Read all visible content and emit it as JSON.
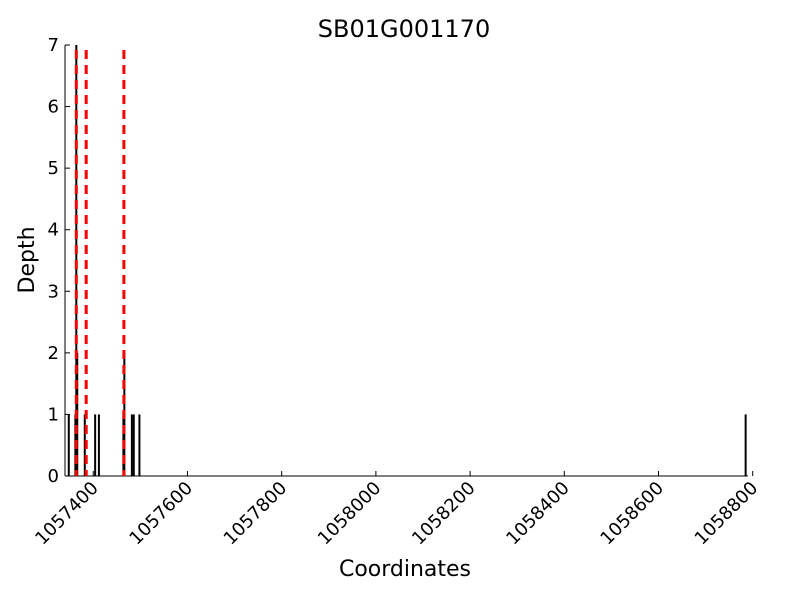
{
  "chart_data": {
    "type": "bar",
    "title": "SB01G001170",
    "xlabel": "Coordinates",
    "ylabel": "Depth",
    "xlim": [
      1057340,
      1058790
    ],
    "ylim": [
      0,
      7
    ],
    "grid": false,
    "legend": "none",
    "xticks": [
      1057400,
      1057600,
      1057800,
      1058000,
      1058200,
      1058400,
      1058600,
      1058800
    ],
    "xtick_labels": [
      "1057400",
      "1057600",
      "1057800",
      "1058000",
      "1058200",
      "1058400",
      "1058600",
      "1058800"
    ],
    "yticks": [
      0,
      1,
      2,
      3,
      4,
      5,
      6,
      7
    ],
    "ytick_labels": [
      "0",
      "1",
      "2",
      "3",
      "4",
      "5",
      "6",
      "7"
    ],
    "series": [
      {
        "name": "depth",
        "color": "#000000",
        "points": [
          {
            "x": 1057348,
            "y": 1
          },
          {
            "x": 1057362,
            "y": 1
          },
          {
            "x": 1057364,
            "y": 7
          },
          {
            "x": 1057366,
            "y": 2
          },
          {
            "x": 1057382,
            "y": 1
          },
          {
            "x": 1057404,
            "y": 1
          },
          {
            "x": 1057412,
            "y": 1
          },
          {
            "x": 1057464,
            "y": 1
          },
          {
            "x": 1057466,
            "y": 2
          },
          {
            "x": 1057482,
            "y": 1
          },
          {
            "x": 1057486,
            "y": 1
          },
          {
            "x": 1057498,
            "y": 1
          },
          {
            "x": 1058785,
            "y": 1
          }
        ]
      }
    ],
    "vlines": [
      {
        "x": 1057364,
        "color": "#ff0000",
        "style": "dashed"
      },
      {
        "x": 1057385,
        "color": "#ff0000",
        "style": "dashed"
      },
      {
        "x": 1057465,
        "color": "#ff0000",
        "style": "dashed"
      }
    ]
  }
}
